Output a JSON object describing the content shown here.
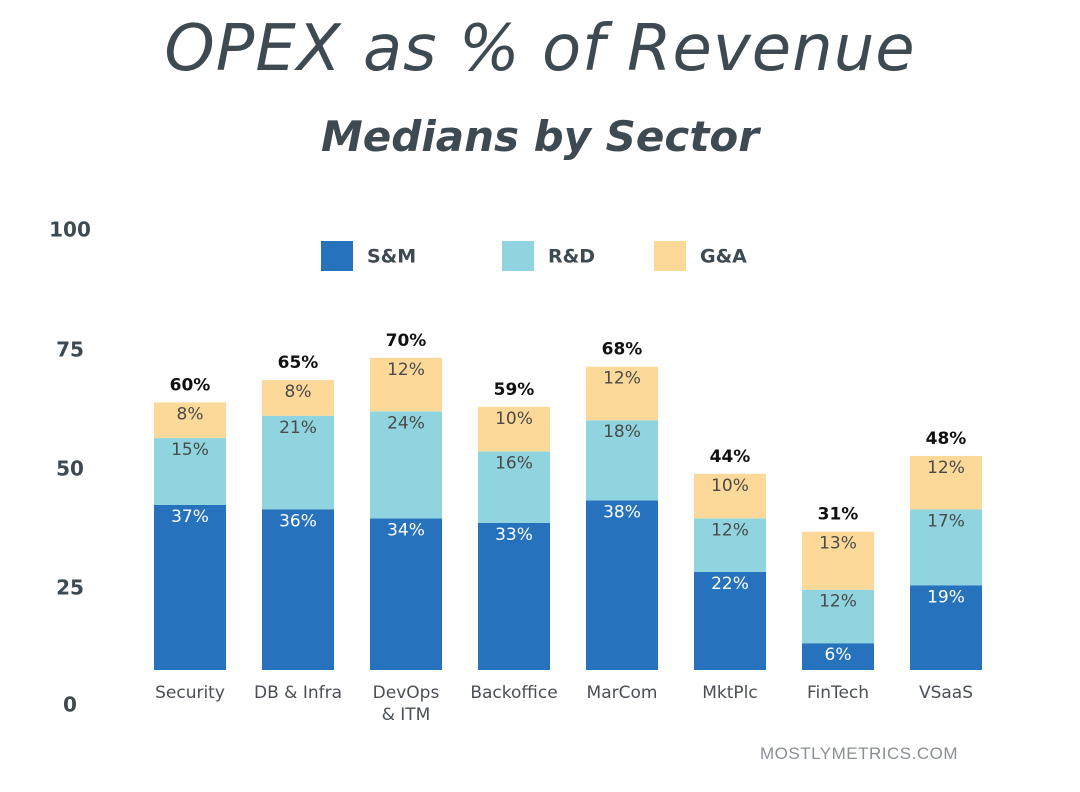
{
  "title": "OPEX as % of Revenue",
  "subtitle": "Medians by Sector",
  "footer": "MOSTLYMETRICS.COM",
  "colors": {
    "sm": "#2672bd",
    "rd": "#8fd4de",
    "ga": "#fcd998",
    "text_dark": "#3d4a52",
    "segment_text_light": "#ffffff",
    "segment_text_dark": "#4a4a4a"
  },
  "chart_data": {
    "type": "bar",
    "stacked": true,
    "categories": [
      "Security",
      "DB & Infra",
      "DevOps\n& ITM",
      "Backoffice",
      "MarCom",
      "MktPlc",
      "FinTech",
      "VSaaS"
    ],
    "series": [
      {
        "name": "S&M",
        "key": "sm",
        "values": [
          37,
          36,
          34,
          33,
          38,
          22,
          6,
          19
        ],
        "labels": [
          "37%",
          "36%",
          "34%",
          "33%",
          "38%",
          "22%",
          "6%",
          "19%"
        ]
      },
      {
        "name": "R&D",
        "key": "rd",
        "values": [
          15,
          21,
          24,
          16,
          18,
          12,
          12,
          17
        ],
        "labels": [
          "15%",
          "21%",
          "24%",
          "16%",
          "18%",
          "12%",
          "12%",
          "17%"
        ]
      },
      {
        "name": "G&A",
        "key": "ga",
        "values": [
          8,
          8,
          12,
          10,
          12,
          10,
          13,
          12
        ],
        "labels": [
          "8%",
          "8%",
          "12%",
          "10%",
          "12%",
          "10%",
          "13%",
          "12%"
        ]
      }
    ],
    "totals": [
      "60%",
      "65%",
      "70%",
      "59%",
      "68%",
      "44%",
      "31%",
      "48%"
    ],
    "yticks": [
      "100",
      "75",
      "50",
      "25",
      "0"
    ],
    "ylim": [
      0,
      100
    ],
    "legend": "top-center",
    "grid": false
  }
}
